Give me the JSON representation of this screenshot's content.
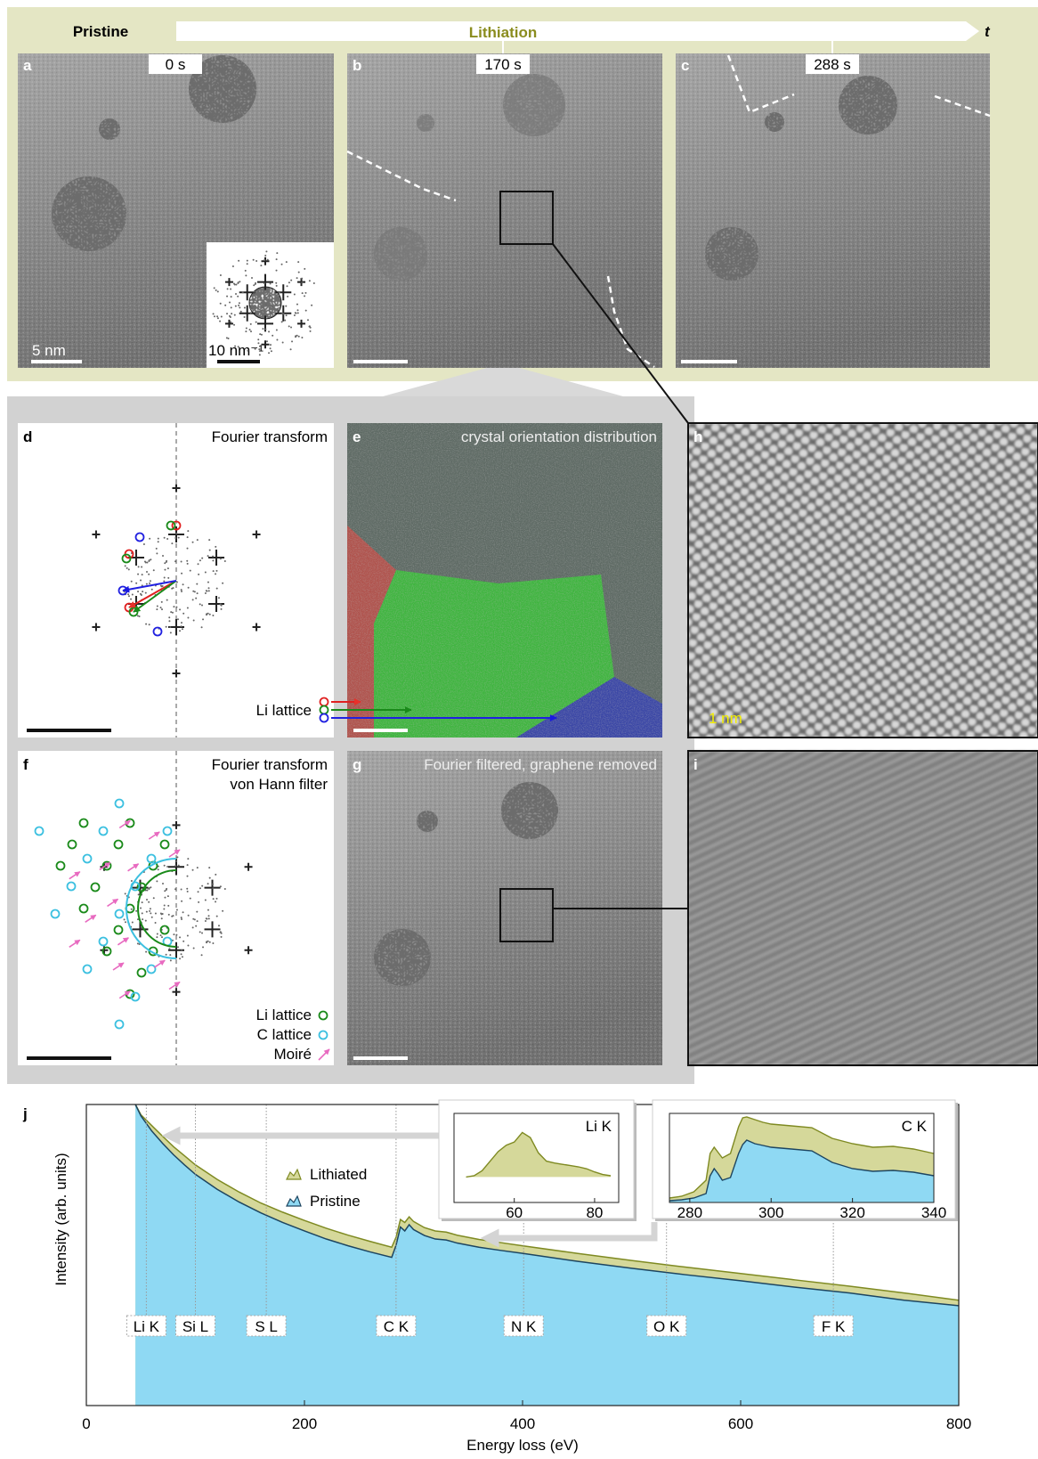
{
  "header": {
    "pristine": "Pristine",
    "lithiation": "Lithiation",
    "time_axis": "t"
  },
  "panels": {
    "a": {
      "letter": "a",
      "time": "0 s",
      "scale_bar": "5 nm",
      "inset_scale_bar": "10 nm⁻¹"
    },
    "b": {
      "letter": "b",
      "time": "170 s"
    },
    "c": {
      "letter": "c",
      "time": "288 s"
    },
    "d": {
      "letter": "d",
      "title": "Fourier transform",
      "legend": "Li lattice"
    },
    "e": {
      "letter": "e",
      "title": "crystal orientation distribution"
    },
    "f": {
      "letter": "f",
      "title_lines": [
        "Fourier transform",
        "von Hann filter"
      ],
      "legend": [
        "Li lattice",
        "C lattice",
        "Moiré"
      ]
    },
    "g": {
      "letter": "g",
      "title": "Fourier filtered, graphene removed"
    },
    "h": {
      "letter": "h",
      "scale_bar": "1 nm"
    },
    "i": {
      "letter": "i"
    }
  },
  "chart_data": {
    "type": "area",
    "panel_label": "j",
    "x_label": "Energy loss (eV)",
    "y_label": "Intensity (arb. units)",
    "xlim": [
      0,
      800
    ],
    "xticks": [
      0,
      200,
      400,
      600,
      800
    ],
    "ylim": [
      0.4,
      18000
    ],
    "log_y": true,
    "x": [
      45,
      50,
      60,
      70,
      80,
      90,
      100,
      120,
      140,
      160,
      180,
      200,
      220,
      240,
      260,
      280,
      284,
      288,
      292,
      296,
      300,
      310,
      320,
      330,
      340,
      360,
      380,
      400,
      450,
      500,
      550,
      600,
      650,
      700,
      750,
      800
    ],
    "series": [
      {
        "name": "Lithiated",
        "color": "#d5d89a",
        "line_color": "#7f8a22",
        "values": [
          18000,
          12500,
          8500,
          5800,
          4000,
          2900,
          2100,
          1250,
          800,
          540,
          390,
          290,
          220,
          172,
          138,
          112,
          160,
          300,
          270,
          330,
          280,
          225,
          200,
          192,
          172,
          148,
          132,
          118,
          90,
          70,
          55,
          44,
          35,
          28,
          22,
          17
        ]
      },
      {
        "name": "Pristine",
        "color": "#8fd9f3",
        "line_color": "#1d4560",
        "values": [
          18000,
          12000,
          7000,
          4500,
          3000,
          2100,
          1500,
          880,
          560,
          380,
          270,
          200,
          150,
          118,
          95,
          78,
          120,
          230,
          200,
          250,
          210,
          170,
          150,
          145,
          130,
          112,
          100,
          90,
          68,
          53,
          42,
          34,
          27,
          22,
          17,
          14
        ]
      }
    ],
    "edges": [
      {
        "label": "Li K",
        "energy": 55
      },
      {
        "label": "Si L",
        "energy": 100
      },
      {
        "label": "S L",
        "energy": 165
      },
      {
        "label": "C K",
        "energy": 284
      },
      {
        "label": "N K",
        "energy": 401
      },
      {
        "label": "O K",
        "energy": 532
      },
      {
        "label": "F K",
        "energy": 685
      }
    ],
    "insets": [
      {
        "title": "Li K",
        "xlim": [
          45,
          86
        ],
        "xticks": [
          60,
          80
        ],
        "ylim": [
          -0.4,
          1
        ],
        "x": [
          48,
          50,
          52,
          54,
          56,
          58,
          60,
          62,
          64,
          66,
          68,
          70,
          72,
          74,
          76,
          78,
          80,
          82,
          84
        ],
        "series": [
          {
            "color": "#d5d89a",
            "line_color": "#7f8a22",
            "values": [
              0,
              0.02,
              0.1,
              0.25,
              0.4,
              0.5,
              0.55,
              0.7,
              0.62,
              0.38,
              0.25,
              0.22,
              0.2,
              0.18,
              0.16,
              0.13,
              0.08,
              0.04,
              0.02
            ]
          }
        ]
      },
      {
        "title": "C K",
        "xlim": [
          275,
          340
        ],
        "xticks": [
          280,
          300,
          320,
          340
        ],
        "ylim": [
          0,
          1
        ],
        "x": [
          275,
          278,
          281,
          284,
          285,
          286,
          287,
          288,
          290,
          292,
          293,
          294,
          296,
          298,
          300,
          305,
          310,
          315,
          320,
          325,
          330,
          335,
          340
        ],
        "series": [
          {
            "color": "#d5d89a",
            "line_color": "#7f8a22",
            "values": [
              0.05,
              0.07,
              0.12,
              0.25,
              0.55,
              0.62,
              0.56,
              0.5,
              0.55,
              0.85,
              0.95,
              0.96,
              0.93,
              0.9,
              0.88,
              0.86,
              0.84,
              0.72,
              0.66,
              0.62,
              0.63,
              0.6,
              0.55
            ]
          },
          {
            "color": "#8fd9f3",
            "line_color": "#1d4560",
            "values": [
              0.02,
              0.03,
              0.05,
              0.1,
              0.3,
              0.38,
              0.32,
              0.25,
              0.28,
              0.55,
              0.65,
              0.7,
              0.66,
              0.64,
              0.62,
              0.6,
              0.58,
              0.45,
              0.38,
              0.35,
              0.36,
              0.34,
              0.3
            ]
          }
        ]
      }
    ]
  }
}
